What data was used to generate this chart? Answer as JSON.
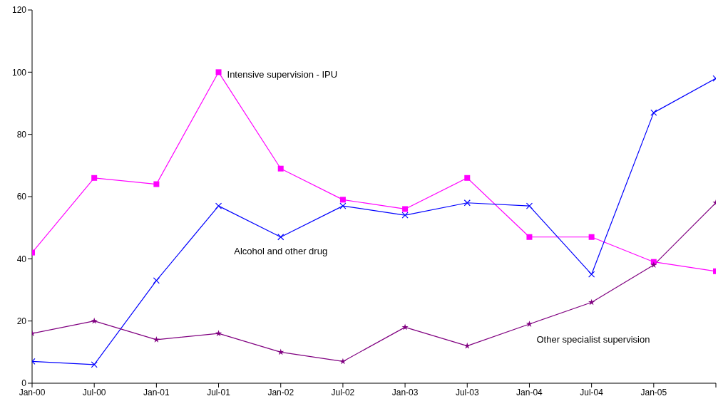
{
  "chart_data": {
    "type": "line",
    "categories": [
      "Jan-00",
      "Jul-00",
      "Jan-01",
      "Jul-01",
      "Jan-02",
      "Jul-02",
      "Jan-03",
      "Jul-03",
      "Jan-04",
      "Jul-04",
      "Jan-05",
      null
    ],
    "series": [
      {
        "name": "Intensive supervision - IPU",
        "color": "#ff00ff",
        "marker": "square",
        "values": [
          42,
          66,
          64,
          100,
          69,
          59,
          56,
          66,
          47,
          47,
          39,
          36
        ]
      },
      {
        "name": "Alcohol and other drug",
        "color": "#0000ff",
        "marker": "cross",
        "values": [
          7,
          6,
          33,
          57,
          47,
          57,
          54,
          58,
          57,
          35,
          87,
          98
        ]
      },
      {
        "name": "Other specialist supervision",
        "color": "#800080",
        "marker": "star",
        "values": [
          16,
          20,
          14,
          16,
          10,
          7,
          18,
          12,
          19,
          26,
          38,
          58
        ]
      }
    ],
    "ylim": [
      0,
      120
    ],
    "yticks": [
      0,
      20,
      40,
      60,
      80,
      100,
      120
    ],
    "grid": false,
    "legend": false,
    "line_style": "solid"
  }
}
